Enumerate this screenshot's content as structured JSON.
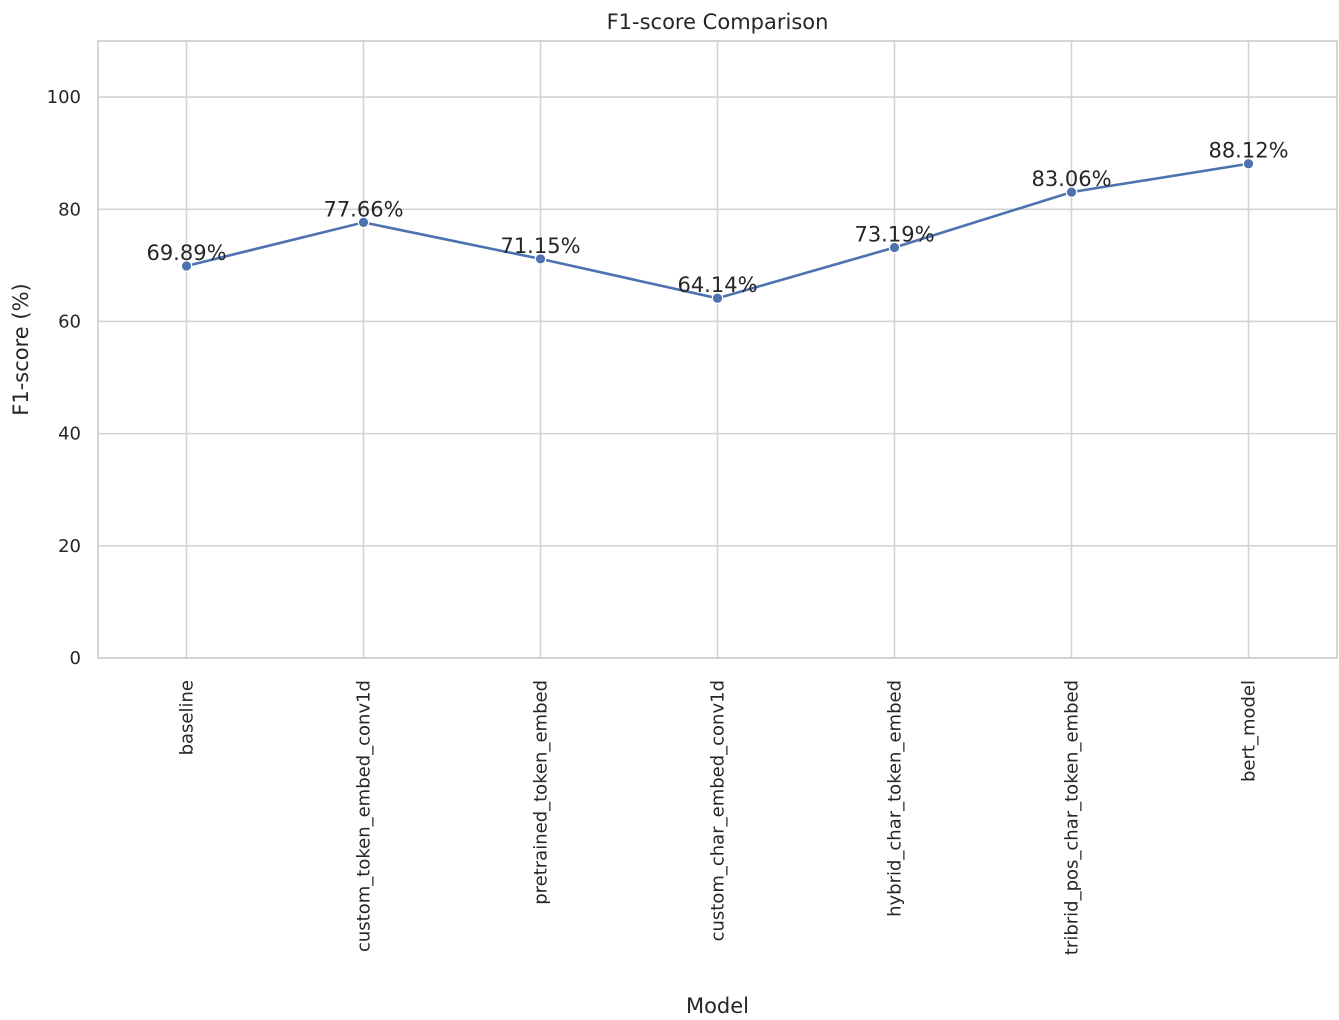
{
  "chart_data": {
    "type": "line",
    "title": "F1-score Comparison",
    "xlabel": "Model",
    "ylabel": "F1-score (%)",
    "categories": [
      "baseline",
      "custom_token_embed_conv1d",
      "pretrained_token_embed",
      "custom_char_embed_conv1d",
      "hybrid_char_token_embed",
      "tribrid_pos_char_token_embed",
      "bert_model"
    ],
    "values": [
      69.89,
      77.66,
      71.15,
      64.14,
      73.19,
      83.06,
      88.12
    ],
    "data_labels": [
      "69.89%",
      "77.66%",
      "71.15%",
      "64.14%",
      "73.19%",
      "83.06%",
      "88.12%"
    ],
    "ylim": [
      0,
      110
    ],
    "yticks": [
      0,
      20,
      40,
      60,
      80,
      100
    ],
    "grid": true,
    "line_color": "#4c72b0",
    "markers": true
  }
}
